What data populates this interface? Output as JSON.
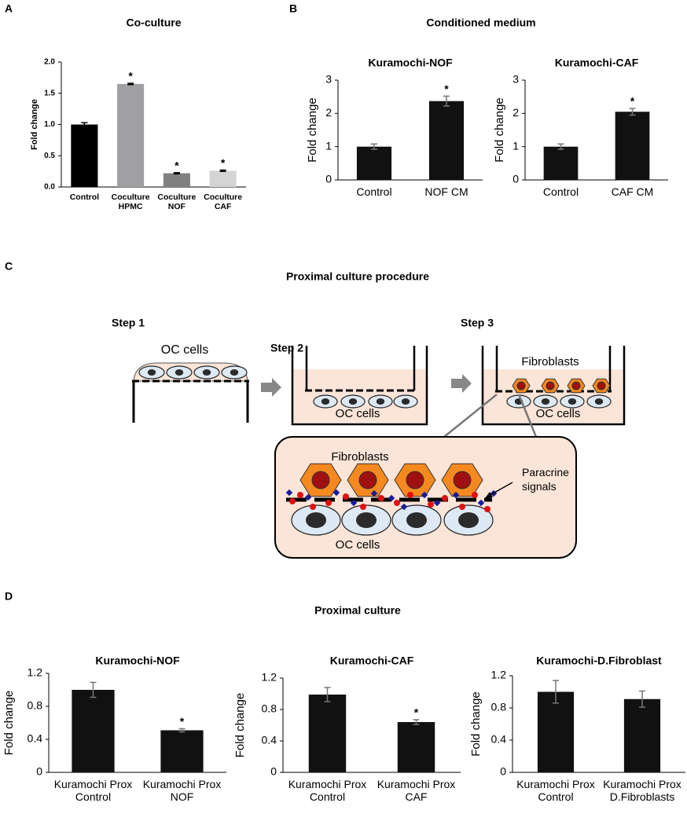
{
  "panel_labels": [
    "A",
    "B",
    "C",
    "D"
  ],
  "conditioned_medium_title": "Conditioned medium",
  "proximal_culture_title": "Proximal culture",
  "chart_data": [
    {
      "type": "bar",
      "title": "Co-culture",
      "ylabel": "Fold change",
      "categories": [
        "Control",
        "Coculture HPMC",
        "Coculture NOF",
        "Coculture CAF"
      ],
      "values": [
        1.0,
        1.65,
        0.22,
        0.26
      ],
      "errors": [
        0.03,
        0.01,
        0.01,
        0.01
      ],
      "annotations": [
        null,
        "*",
        "*",
        "*"
      ],
      "colors": [
        "#000000",
        "#a0a0a4",
        "#808080",
        "#d4d4d4"
      ],
      "ylim": [
        0,
        2.0
      ],
      "yticks": [
        {
          "value": 0,
          "label": "0.0"
        },
        {
          "value": 0.5,
          "label": "0.5"
        },
        {
          "value": 1.0,
          "label": "1.0"
        },
        {
          "value": 1.5,
          "label": "1.5"
        },
        {
          "value": 2.0,
          "label": "2.0"
        }
      ]
    },
    {
      "type": "bar",
      "title": "Kuramochi-NOF",
      "ylabel": "Fold change",
      "categories": [
        "Control",
        "NOF CM"
      ],
      "values": [
        1.0,
        2.37
      ],
      "errors": [
        0.08,
        0.15
      ],
      "annotations": [
        null,
        "*"
      ],
      "color": "#111111",
      "ylim": [
        0,
        3
      ],
      "yticks": [
        0,
        1,
        2,
        3
      ]
    },
    {
      "type": "bar",
      "title": "Kuramochi-CAF",
      "ylabel": "Fold change",
      "categories": [
        "Control",
        "CAF CM"
      ],
      "values": [
        1.0,
        2.05
      ],
      "errors": [
        0.08,
        0.1
      ],
      "annotations": [
        null,
        "*"
      ],
      "color": "#111111",
      "ylim": [
        0,
        3
      ],
      "yticks": [
        0,
        1,
        2,
        3
      ]
    },
    {
      "type": "bar",
      "title": "Kuramochi-NOF",
      "ylabel": "Fold change",
      "categories": [
        "Kuramochi Prox Control",
        "Kuramochi Prox NOF"
      ],
      "values": [
        1.0,
        0.51
      ],
      "errors": [
        0.09,
        0.02
      ],
      "annotations": [
        null,
        "*"
      ],
      "color": "#111111",
      "ylim": [
        0,
        1.2
      ],
      "yticks": [
        0,
        0.4,
        0.8,
        1.2
      ]
    },
    {
      "type": "bar",
      "title": "Kuramochi-CAF",
      "ylabel": "Fold change",
      "categories": [
        "Kuramochi Prox Control",
        "Kuramochi Prox CAF"
      ],
      "values": [
        0.99,
        0.64
      ],
      "errors": [
        0.09,
        0.03
      ],
      "annotations": [
        null,
        "*"
      ],
      "color": "#111111",
      "ylim": [
        0,
        1.2
      ],
      "yticks": [
        0,
        0.4,
        0.8,
        1.2
      ]
    },
    {
      "type": "bar",
      "title": "Kuramochi-D.Fibroblast",
      "ylabel": "Fold change",
      "categories": [
        "Kuramochi Prox Control",
        "Kuramochi Prox D.Fibroblasts"
      ],
      "values": [
        1.0,
        0.91
      ],
      "errors": [
        0.14,
        0.1
      ],
      "color": "#111111",
      "ylim": [
        0,
        1.2
      ],
      "yticks": [
        0,
        0.4,
        0.8,
        1.2
      ]
    }
  ],
  "diagram": {
    "title": "Proximal culture procedure",
    "steps": [
      "Step 1",
      "Step 2",
      "Step 3"
    ],
    "step1_label": "OC cells",
    "step2_label": "OC cells",
    "step3_top_label": "Fibroblasts",
    "step3_bottom_label": "OC cells",
    "inset_top_label": "Fibroblasts",
    "inset_signal_label": "Paracrine signals",
    "inset_bottom_label": "OC cells"
  }
}
